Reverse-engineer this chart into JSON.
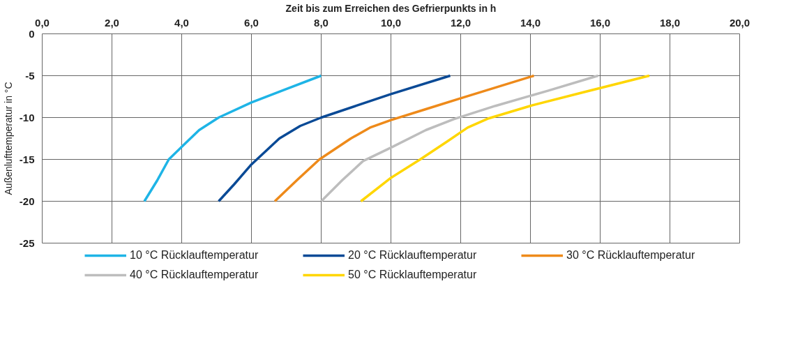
{
  "chart_data": {
    "type": "line",
    "xlabel": "Zeit bis zum Erreichen des Gefrierpunkts in h",
    "ylabel": "Außenlufttemperatur in °C",
    "xlim": [
      0,
      20
    ],
    "xticks": [
      {
        "value": 0,
        "label": "0,0"
      },
      {
        "value": 2,
        "label": "2,0"
      },
      {
        "value": 4,
        "label": "4,0"
      },
      {
        "value": 6,
        "label": "6,0"
      },
      {
        "value": 8,
        "label": "8,0"
      },
      {
        "value": 10,
        "label": "10,0"
      },
      {
        "value": 12,
        "label": "12,0"
      },
      {
        "value": 14,
        "label": "14,0"
      },
      {
        "value": 16,
        "label": "16,0"
      },
      {
        "value": 18,
        "label": "18,0"
      },
      {
        "value": 20,
        "label": "20,0"
      }
    ],
    "ylim": [
      -25,
      0
    ],
    "yticks": [
      0,
      -5,
      -10,
      -15,
      -20,
      -25
    ],
    "grid": true,
    "legend": "bottom",
    "marker": "none",
    "line_style": "solid",
    "series": [
      {
        "name": "10 °C Rücklauftemperatur",
        "color": "#1eb4e6",
        "x": [
          2.93,
          3.3,
          3.63,
          4.0,
          4.5,
          5.06,
          6.0,
          7.0,
          8.0
        ],
        "values": [
          -20,
          -17.5,
          -15,
          -13.5,
          -11.5,
          -10,
          -8.2,
          -6.6,
          -5
        ]
      },
      {
        "name": "20 °C Rücklauftemperatur",
        "color": "#0a4a96",
        "x": [
          5.06,
          5.5,
          6.0,
          6.8,
          7.4,
          8.0,
          9.0,
          10.0,
          11.7
        ],
        "values": [
          -20,
          -18,
          -15.6,
          -12.5,
          -11,
          -10,
          -8.6,
          -7.2,
          -5
        ]
      },
      {
        "name": "30 °C Rücklauftemperatur",
        "color": "#ee8a1a",
        "x": [
          6.67,
          7.3,
          7.95,
          8.85,
          9.4,
          10.0,
          11.0,
          12.0,
          14.1
        ],
        "values": [
          -20,
          -17.5,
          -15,
          -12.5,
          -11.2,
          -10.3,
          -9.0,
          -7.7,
          -5
        ]
      },
      {
        "name": "40 °C Rücklauftemperatur",
        "color": "#bdbdbd",
        "x": [
          8.0,
          8.6,
          9.2,
          10.0,
          11.0,
          11.8,
          13.0,
          14.5,
          15.94
        ],
        "values": [
          -20,
          -17.5,
          -15.2,
          -13.6,
          -11.5,
          -10.2,
          -8.6,
          -6.8,
          -5
        ]
      },
      {
        "name": "50 °C Rücklauftemperatur",
        "color": "#ffd600",
        "x": [
          9.14,
          10.0,
          10.84,
          11.6,
          12.2,
          12.8,
          14.0,
          15.5,
          17.41
        ],
        "values": [
          -20,
          -17.2,
          -15,
          -12.9,
          -11.2,
          -10.1,
          -8.6,
          -7.0,
          -5
        ]
      }
    ]
  }
}
